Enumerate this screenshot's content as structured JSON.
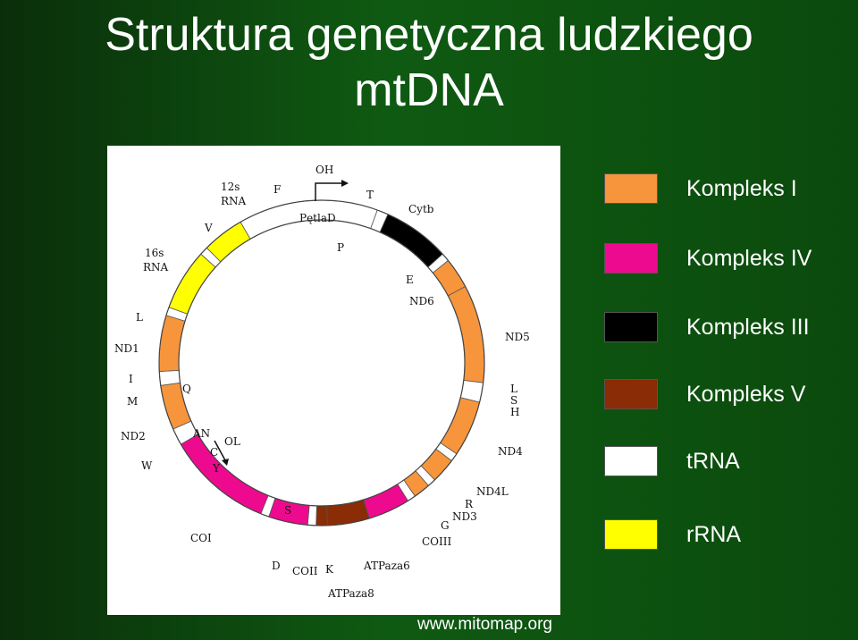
{
  "title_line1": "Struktura genetyczna ludzkiego",
  "title_line2": "mtDNA",
  "colors": {
    "complex1": "#f7953c",
    "complex4": "#ee0a8e",
    "complex3": "#000000",
    "complex5": "#8a2c06",
    "trna": "#ffffff",
    "rrna": "#ffff00"
  },
  "legend": [
    {
      "label": "Kompleks I",
      "color": "#f7953c"
    },
    {
      "label": "Kompleks IV",
      "color": "#ee0a8e"
    },
    {
      "label": "Kompleks III",
      "color": "#000000"
    },
    {
      "label": "Kompleks V",
      "color": "#8a2c06"
    },
    {
      "label": "tRNA",
      "color": "#ffffff"
    },
    {
      "label": "rRNA",
      "color": "#ffff00"
    }
  ],
  "genes": {
    "oh": "OH",
    "petlad": "PętlaD",
    "t": "T",
    "cytb": "Cytb",
    "p": "P",
    "e": "E",
    "nd6": "ND6",
    "nd5": "ND5",
    "l_right": "L",
    "s_right": "S",
    "h_right": "H",
    "nd4": "ND4",
    "nd4l": "ND4L",
    "r": "R",
    "nd3": "ND3",
    "g": "G",
    "coiii": "COIII",
    "atpaza6": "ATPaza6",
    "atpaza8": "ATPaza8",
    "k": "K",
    "coii": "COII",
    "d": "D",
    "s_bottom": "S",
    "coi": "COI",
    "w": "W",
    "an": "AN",
    "c": "C",
    "y": "Y",
    "ol": "OL",
    "nd2": "ND2",
    "m": "M",
    "i": "I",
    "q": "Q",
    "nd1": "ND1",
    "l_left": "L",
    "rna16_a": "16s",
    "rna16_b": "RNA",
    "v": "V",
    "rna12_a": "12s",
    "rna12_b": "RNA",
    "f": "F"
  },
  "source": "www.mitomap.org"
}
